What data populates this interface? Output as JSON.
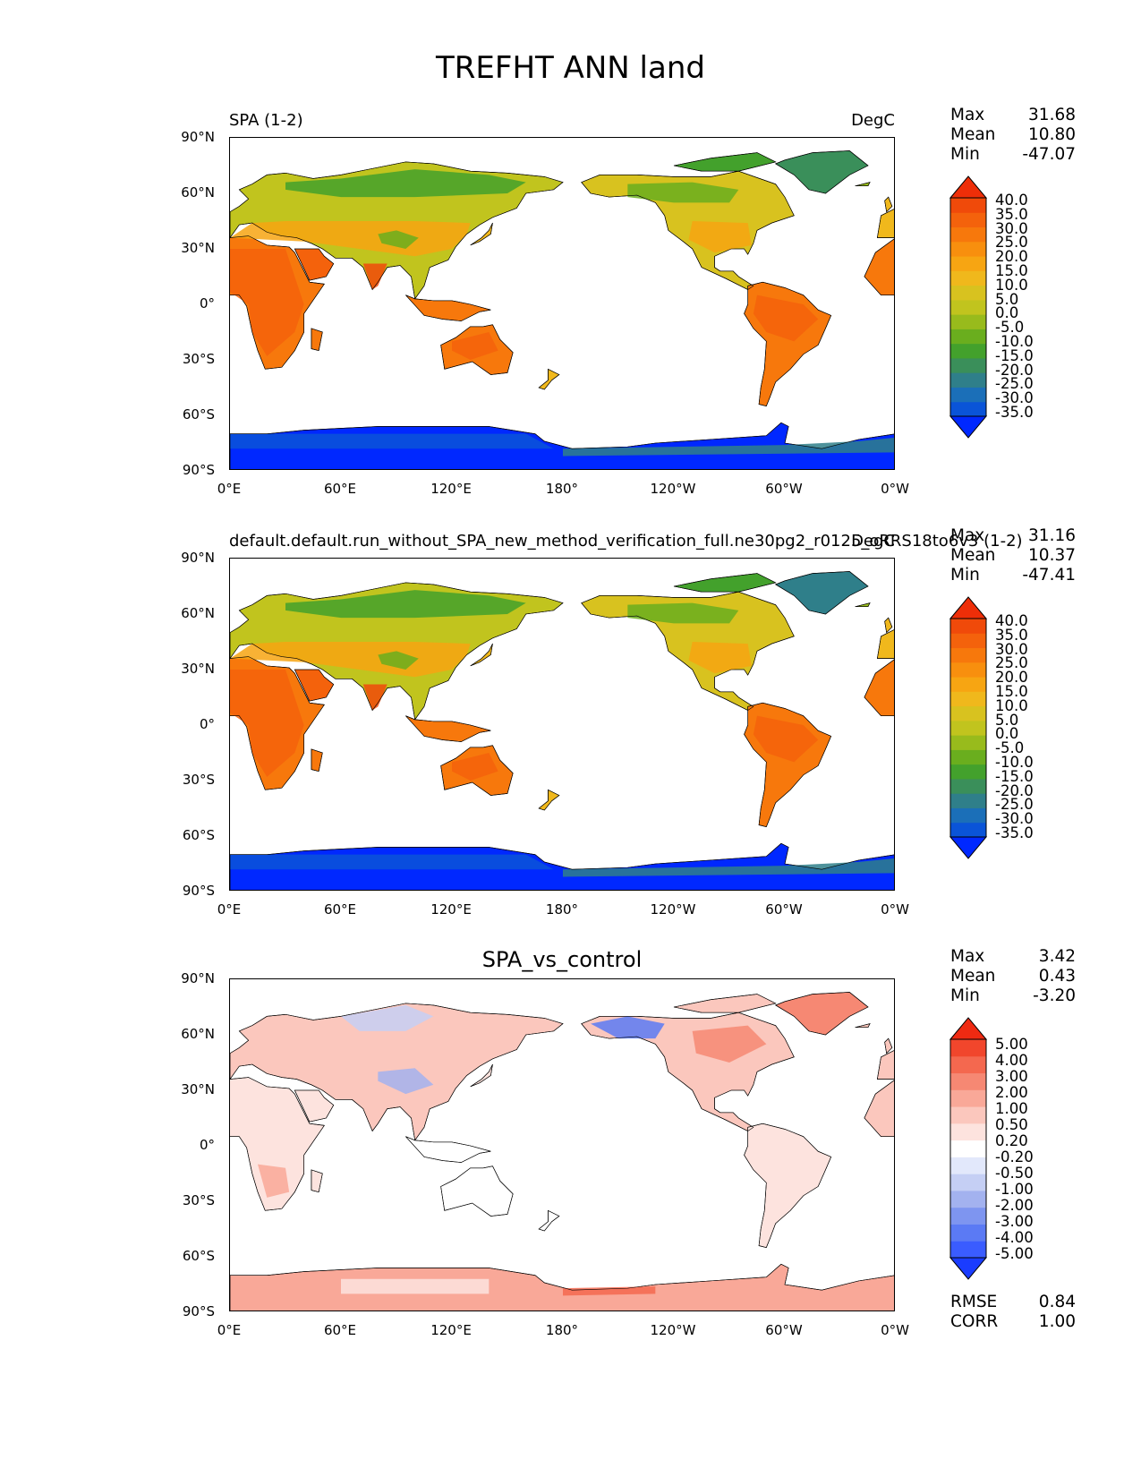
{
  "title": "TREFHT ANN land",
  "panels": [
    {
      "left_title": "SPA (1-2)",
      "right_title": "DegC",
      "stats": [
        {
          "label": "Max",
          "value": "31.68"
        },
        {
          "label": "Mean",
          "value": "10.80"
        },
        {
          "label": "Min",
          "value": "-47.07"
        }
      ],
      "colorbar_labels": [
        "40.0",
        "35.0",
        "30.0",
        "25.0",
        "20.0",
        "15.0",
        "10.0",
        "5.0",
        "0.0",
        "-5.0",
        "-10.0",
        "-15.0",
        "-20.0",
        "-25.0",
        "-30.0",
        "-35.0"
      ]
    },
    {
      "left_title": "default.default.run_without_SPA_new_method_verification_full.ne30pg2_r0125_oRRS18to6v3 (1-2)",
      "right_title": "DegC",
      "stats": [
        {
          "label": "Max",
          "value": "31.16"
        },
        {
          "label": "Mean",
          "value": "10.37"
        },
        {
          "label": "Min",
          "value": "-47.41"
        }
      ],
      "colorbar_labels": [
        "40.0",
        "35.0",
        "30.0",
        "25.0",
        "20.0",
        "15.0",
        "10.0",
        "5.0",
        "0.0",
        "-5.0",
        "-10.0",
        "-15.0",
        "-20.0",
        "-25.0",
        "-30.0",
        "-35.0"
      ]
    },
    {
      "center_title": "SPA_vs_control",
      "stats": [
        {
          "label": "Max",
          "value": "3.42"
        },
        {
          "label": "Mean",
          "value": "0.43"
        },
        {
          "label": "Min",
          "value": "-3.20"
        }
      ],
      "colorbar_labels": [
        "5.00",
        "4.00",
        "3.00",
        "2.00",
        "1.00",
        "0.50",
        "0.20",
        "-0.20",
        "-0.50",
        "-1.00",
        "-2.00",
        "-3.00",
        "-4.00",
        "-5.00"
      ],
      "extra_stats": [
        {
          "label": "RMSE",
          "value": "0.84"
        },
        {
          "label": "CORR",
          "value": "1.00"
        }
      ]
    }
  ],
  "lat_ticks": [
    "90°N",
    "60°N",
    "30°N",
    "0°",
    "30°S",
    "60°S",
    "90°S"
  ],
  "lon_ticks": [
    "0°E",
    "60°E",
    "120°E",
    "180°",
    "120°W",
    "60°W",
    "0°W"
  ],
  "colors": {
    "temp_scale": [
      "#0028ff",
      "#0a54d8",
      "#1b6fb8",
      "#2f7f8a",
      "#3a8f5a",
      "#43a12c",
      "#6aae1e",
      "#98bb1c",
      "#c1c41e",
      "#d8c21f",
      "#f0b81c",
      "#f7a512",
      "#f88f0e",
      "#f7780c",
      "#f4620c",
      "#f04a0a",
      "#ee2e08"
    ],
    "diff_scale": [
      "#1a3cff",
      "#3a5cff",
      "#5b7af4",
      "#7e95f0",
      "#a3b2ef",
      "#c5cff4",
      "#e2e8fb",
      "#ffffff",
      "#fde3de",
      "#fbc7bd",
      "#f9a898",
      "#f68873",
      "#f4684f",
      "#f1462c",
      "#ef2a12"
    ]
  }
}
